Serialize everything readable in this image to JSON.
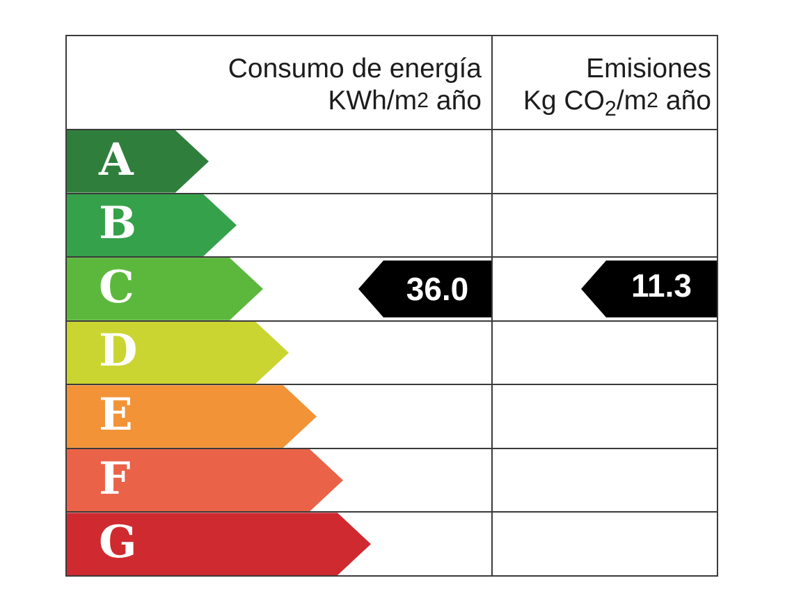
{
  "page": {
    "background": "#ffffff",
    "grid_line_color": "#3a3a3a"
  },
  "header": {
    "consumption": {
      "line1": "Consumo de energía",
      "line2_parts": [
        "KWh/m",
        "2",
        " año"
      ]
    },
    "emissions": {
      "line1": "Emisiones",
      "line2_parts": [
        "Kg CO",
        "2",
        "/m",
        "2",
        " año"
      ]
    }
  },
  "ratings": [
    {
      "letter": "A",
      "color": "#2f7e3c"
    },
    {
      "letter": "B",
      "color": "#35a14b"
    },
    {
      "letter": "C",
      "color": "#5cb83c"
    },
    {
      "letter": "D",
      "color": "#cbd531"
    },
    {
      "letter": "E",
      "color": "#f29338"
    },
    {
      "letter": "F",
      "color": "#ea6248"
    },
    {
      "letter": "G",
      "color": "#cf2a30"
    }
  ],
  "badges": {
    "consumption_value": "36.0",
    "emissions_value": "11.3",
    "background": "#000000",
    "text_color": "#ffffff"
  },
  "chart_data": {
    "type": "table",
    "columns": [
      "Consumo de energía KWh/m2 año",
      "Emisiones Kg CO2/m2 año"
    ],
    "rating_scale": [
      "A",
      "B",
      "C",
      "D",
      "E",
      "F",
      "G"
    ],
    "rating_colors": [
      "#2f7e3c",
      "#35a14b",
      "#5cb83c",
      "#cbd531",
      "#f29338",
      "#ea6248",
      "#cf2a30"
    ],
    "current_rating": "C",
    "values": [
      {
        "metric": "Consumo de energía (KWh/m2 año)",
        "value": 36.0,
        "rating": "C"
      },
      {
        "metric": "Emisiones (Kg CO2/m2 año)",
        "value": 11.3,
        "rating": "C"
      }
    ],
    "legend_position": "none",
    "grid": true
  }
}
